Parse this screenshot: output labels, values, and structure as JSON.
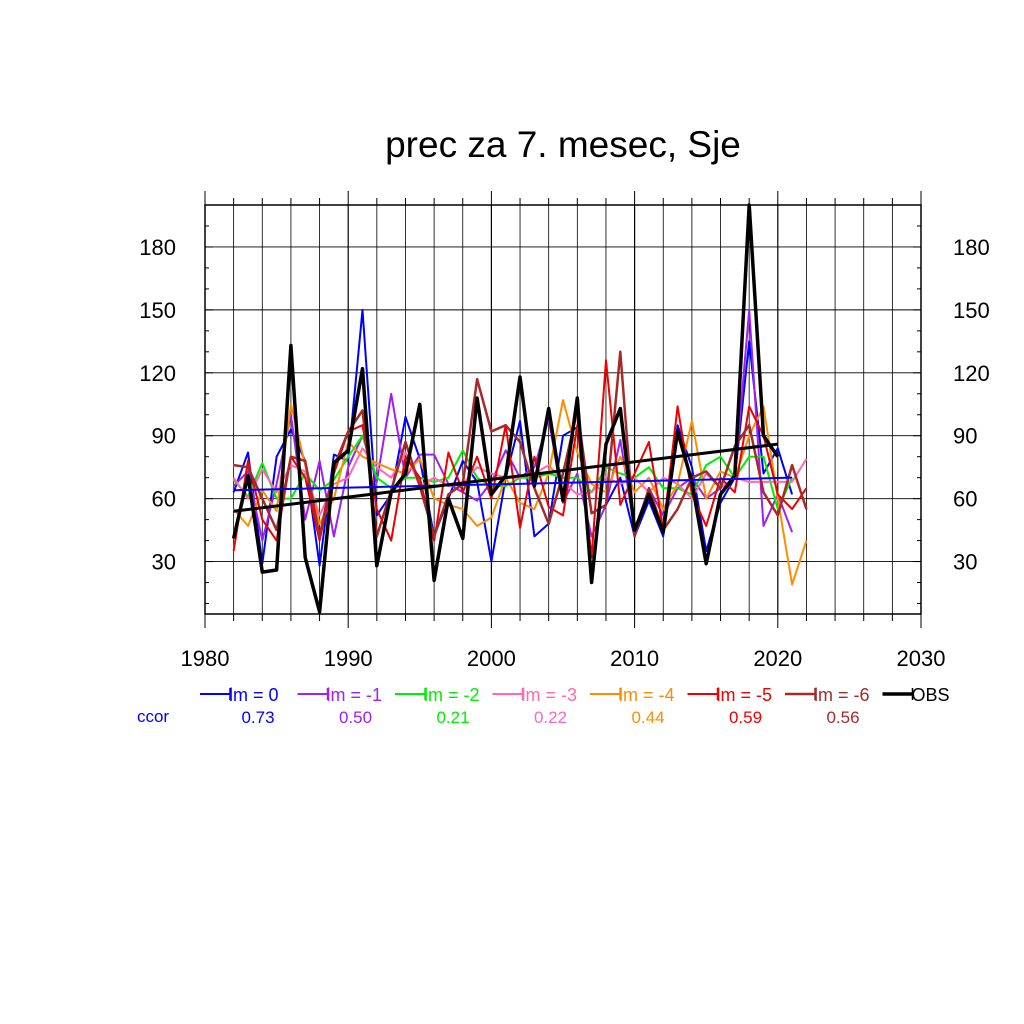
{
  "chart_data": {
    "type": "line",
    "title": "prec za 7. mesec, Sje",
    "xlabel": "",
    "ylabel": "",
    "xlim": [
      1980,
      2030
    ],
    "ylim": [
      5,
      200
    ],
    "x_ticks": [
      1980,
      1990,
      2000,
      2010,
      2020,
      2030
    ],
    "y_ticks": [
      30,
      60,
      90,
      120,
      150,
      180
    ],
    "grid": true,
    "legend_position": "bottom",
    "ccor_label": "ccor",
    "ccor_color": "#0000ff",
    "series": [
      {
        "name": "lm = 0",
        "color": "#0000ff",
        "width": 2,
        "ccor": "0.73",
        "x": [
          1982,
          1983,
          1984,
          1985,
          1986,
          1987,
          1988,
          1989,
          1990,
          1991,
          1992,
          1993,
          1994,
          1995,
          1996,
          1997,
          1998,
          1999,
          2000,
          2001,
          2002,
          2003,
          2004,
          2005,
          2006,
          2007,
          2008,
          2009,
          2010,
          2011,
          2012,
          2013,
          2014,
          2015,
          2016,
          2017,
          2018,
          2019,
          2020,
          2021
        ],
        "y": [
          63,
          82,
          29,
          80,
          93,
          78,
          28,
          81,
          78,
          150,
          52,
          62,
          99,
          79,
          42,
          60,
          78,
          68,
          30,
          70,
          97,
          42,
          48,
          90,
          94,
          53,
          57,
          70,
          42,
          59,
          42,
          95,
          75,
          35,
          58,
          70,
          135,
          72,
          84,
          62
        ]
      },
      {
        "name": "lm = -1",
        "color": "#a020f0",
        "width": 2,
        "ccor": "0.50",
        "x": [
          1982,
          1983,
          1984,
          1985,
          1986,
          1987,
          1988,
          1989,
          1990,
          1991,
          1992,
          1993,
          1994,
          1995,
          1996,
          1997,
          1998,
          1999,
          2000,
          2001,
          2002,
          2003,
          2004,
          2005,
          2006,
          2007,
          2008,
          2009,
          2010,
          2011,
          2012,
          2013,
          2014,
          2015,
          2016,
          2017,
          2018,
          2019,
          2020,
          2021
        ],
        "y": [
          66,
          73,
          40,
          67,
          100,
          50,
          78,
          42,
          75,
          90,
          68,
          110,
          70,
          81,
          81,
          67,
          63,
          59,
          68,
          83,
          70,
          75,
          98,
          58,
          72,
          42,
          57,
          88,
          45,
          65,
          52,
          65,
          70,
          60,
          65,
          70,
          150,
          47,
          62,
          44
        ]
      },
      {
        "name": "lm = -2",
        "color": "#00ee00",
        "width": 2,
        "ccor": "0.21",
        "x": [
          1982,
          1983,
          1984,
          1985,
          1986,
          1987,
          1988,
          1989,
          1990,
          1991,
          1992,
          1993,
          1994,
          1995,
          1996,
          1997,
          1998,
          1999,
          2000,
          2001,
          2002,
          2003,
          2004,
          2005,
          2006,
          2007,
          2008,
          2009,
          2010,
          2011,
          2012,
          2013,
          2014,
          2015,
          2016,
          2017,
          2018,
          2019,
          2020,
          2021
        ],
        "y": [
          69,
          61,
          77,
          60,
          60,
          72,
          64,
          69,
          80,
          90,
          70,
          65,
          70,
          70,
          68,
          70,
          83,
          70,
          66,
          66,
          70,
          70,
          72,
          70,
          70,
          63,
          75,
          72,
          70,
          75,
          65,
          65,
          62,
          76,
          80,
          70,
          80,
          80,
          55,
          70
        ]
      },
      {
        "name": "lm = -3",
        "color": "#ff69b4",
        "width": 2,
        "ccor": "0.22",
        "x": [
          1982,
          1983,
          1984,
          1985,
          1986,
          1987,
          1988,
          1989,
          1990,
          1991,
          1992,
          1993,
          1994,
          1995,
          1996,
          1997,
          1998,
          1999,
          2000,
          2001,
          2002,
          2003,
          2004,
          2005,
          2006,
          2007,
          2008,
          2009,
          2010,
          2011,
          2012,
          2013,
          2014,
          2015,
          2016,
          2017,
          2018,
          2019,
          2020,
          2021,
          2022
        ],
        "y": [
          70,
          60,
          74,
          63,
          76,
          73,
          52,
          67,
          70,
          84,
          75,
          70,
          82,
          66,
          70,
          66,
          67,
          75,
          72,
          70,
          70,
          72,
          76,
          68,
          62,
          63,
          70,
          67,
          70,
          63,
          70,
          67,
          60,
          72,
          65,
          70,
          68,
          68,
          68,
          68,
          79
        ]
      },
      {
        "name": "lm = -4",
        "color": "#ff8c00",
        "width": 2,
        "ccor": "0.44",
        "x": [
          1982,
          1983,
          1984,
          1985,
          1986,
          1987,
          1988,
          1989,
          1990,
          1991,
          1992,
          1993,
          1994,
          1995,
          1996,
          1997,
          1998,
          1999,
          2000,
          2001,
          2002,
          2003,
          2004,
          2005,
          2006,
          2007,
          2008,
          2009,
          2010,
          2011,
          2012,
          2013,
          2014,
          2015,
          2016,
          2017,
          2018,
          2019,
          2020,
          2021,
          2022
        ],
        "y": [
          55,
          47,
          64,
          54,
          105,
          76,
          48,
          60,
          87,
          80,
          77,
          74,
          72,
          79,
          60,
          57,
          55,
          47,
          51,
          70,
          58,
          55,
          72,
          107,
          82,
          67,
          63,
          80,
          63,
          70,
          55,
          67,
          97,
          60,
          73,
          70,
          90,
          104,
          60,
          19,
          40
        ]
      },
      {
        "name": "lm = -5",
        "color": "#ee0000",
        "width": 2,
        "ccor": "0.59",
        "x": [
          1982,
          1983,
          1984,
          1985,
          1986,
          1987,
          1988,
          1989,
          1990,
          1991,
          1992,
          1993,
          1994,
          1995,
          1996,
          1997,
          1998,
          1999,
          2000,
          2001,
          2002,
          2003,
          2004,
          2005,
          2006,
          2007,
          2008,
          2009,
          2010,
          2011,
          2012,
          2013,
          2014,
          2015,
          2016,
          2017,
          2018,
          2019,
          2020,
          2021,
          2022
        ],
        "y": [
          35,
          78,
          50,
          40,
          80,
          70,
          40,
          72,
          92,
          95,
          55,
          40,
          80,
          70,
          40,
          82,
          63,
          80,
          60,
          95,
          46,
          80,
          56,
          52,
          95,
          32,
          126,
          57,
          72,
          87,
          45,
          104,
          62,
          47,
          70,
          63,
          104,
          90,
          62,
          55,
          65
        ]
      },
      {
        "name": "lm = -6",
        "color": "#a52a2a",
        "width": 2.5,
        "ccor": "0.56",
        "x": [
          1982,
          1983,
          1984,
          1985,
          1986,
          1987,
          1988,
          1989,
          1990,
          1991,
          1992,
          1993,
          1994,
          1995,
          1996,
          1997,
          1998,
          1999,
          2000,
          2001,
          2002,
          2003,
          2004,
          2005,
          2006,
          2007,
          2008,
          2009,
          2010,
          2011,
          2012,
          2013,
          2014,
          2015,
          2016,
          2017,
          2018,
          2019,
          2020,
          2021,
          2022
        ],
        "y": [
          76,
          75,
          60,
          45,
          80,
          78,
          42,
          75,
          92,
          102,
          42,
          64,
          87,
          66,
          42,
          62,
          67,
          117,
          92,
          95,
          87,
          65,
          48,
          72,
          102,
          53,
          57,
          130,
          42,
          65,
          45,
          55,
          70,
          73,
          65,
          85,
          95,
          63,
          52,
          76,
          55
        ]
      },
      {
        "name": "OBS",
        "color": "#000000",
        "width": 3.5,
        "ccor": "",
        "x": [
          1982,
          1983,
          1984,
          1985,
          1986,
          1987,
          1988,
          1989,
          1990,
          1991,
          1992,
          1993,
          1994,
          1995,
          1996,
          1997,
          1998,
          1999,
          2000,
          2001,
          2002,
          2003,
          2004,
          2005,
          2006,
          2007,
          2008,
          2009,
          2010,
          2011,
          2012,
          2013,
          2014,
          2015,
          2016,
          2017,
          2018,
          2019,
          2020
        ],
        "y": [
          41,
          71,
          25,
          26,
          133,
          32,
          6,
          77,
          83,
          122,
          28,
          63,
          72,
          105,
          21,
          60,
          41,
          108,
          62,
          71,
          118,
          66,
          103,
          59,
          108,
          20,
          86,
          103,
          45,
          62,
          44,
          92,
          68,
          29,
          62,
          71,
          200,
          90,
          80
        ]
      }
    ],
    "trend_lines": [
      {
        "series": "lm = 0",
        "color": "#0000ff",
        "width": 2,
        "x": [
          1982,
          2021
        ],
        "y": [
          64,
          70
        ]
      },
      {
        "series": "OBS",
        "color": "#000000",
        "width": 3,
        "x": [
          1982,
          2020
        ],
        "y": [
          54,
          86
        ]
      }
    ]
  }
}
